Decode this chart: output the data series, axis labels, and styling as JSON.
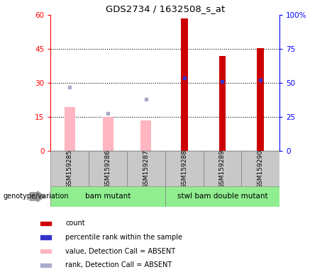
{
  "title": "GDS2734 / 1632508_s_at",
  "samples": [
    "GSM159285",
    "GSM159286",
    "GSM159287",
    "GSM159288",
    "GSM159289",
    "GSM159290"
  ],
  "groups": [
    {
      "label": "bam mutant",
      "indices": [
        0,
        1,
        2
      ]
    },
    {
      "label": "stwl bam double mutant",
      "indices": [
        3,
        4,
        5
      ]
    }
  ],
  "count_values": [
    null,
    null,
    null,
    58.5,
    42.0,
    45.5
  ],
  "rank_pct_values": [
    null,
    null,
    null,
    53.5,
    51.0,
    52.0
  ],
  "absent_value_bars": [
    19.5,
    15.0,
    13.5,
    null,
    null,
    null
  ],
  "absent_rank_pct": [
    47.0,
    27.5,
    38.0,
    null,
    null,
    null
  ],
  "ylim_left": [
    0,
    60
  ],
  "ylim_right": [
    0,
    100
  ],
  "yticks_left": [
    0,
    15,
    30,
    45,
    60
  ],
  "ytick_labels_left": [
    "0",
    "15",
    "30",
    "45",
    "60"
  ],
  "yticks_right": [
    0,
    25,
    50,
    75,
    100
  ],
  "ytick_labels_right": [
    "0",
    "25",
    "50",
    "75",
    "100%"
  ],
  "count_color": "#CC0000",
  "rank_color": "#3333CC",
  "absent_value_color": "#FFB6C1",
  "absent_rank_color": "#AAAACC",
  "group_box_color": "#C8C8C8",
  "group_label_bg": "#90EE90",
  "genotype_label": "genotype/variation",
  "legend_items": [
    {
      "label": "count",
      "color": "#CC0000"
    },
    {
      "label": "percentile rank within the sample",
      "color": "#3333CC"
    },
    {
      "label": "value, Detection Call = ABSENT",
      "color": "#FFB6C1"
    },
    {
      "label": "rank, Detection Call = ABSENT",
      "color": "#AAAACC"
    }
  ]
}
